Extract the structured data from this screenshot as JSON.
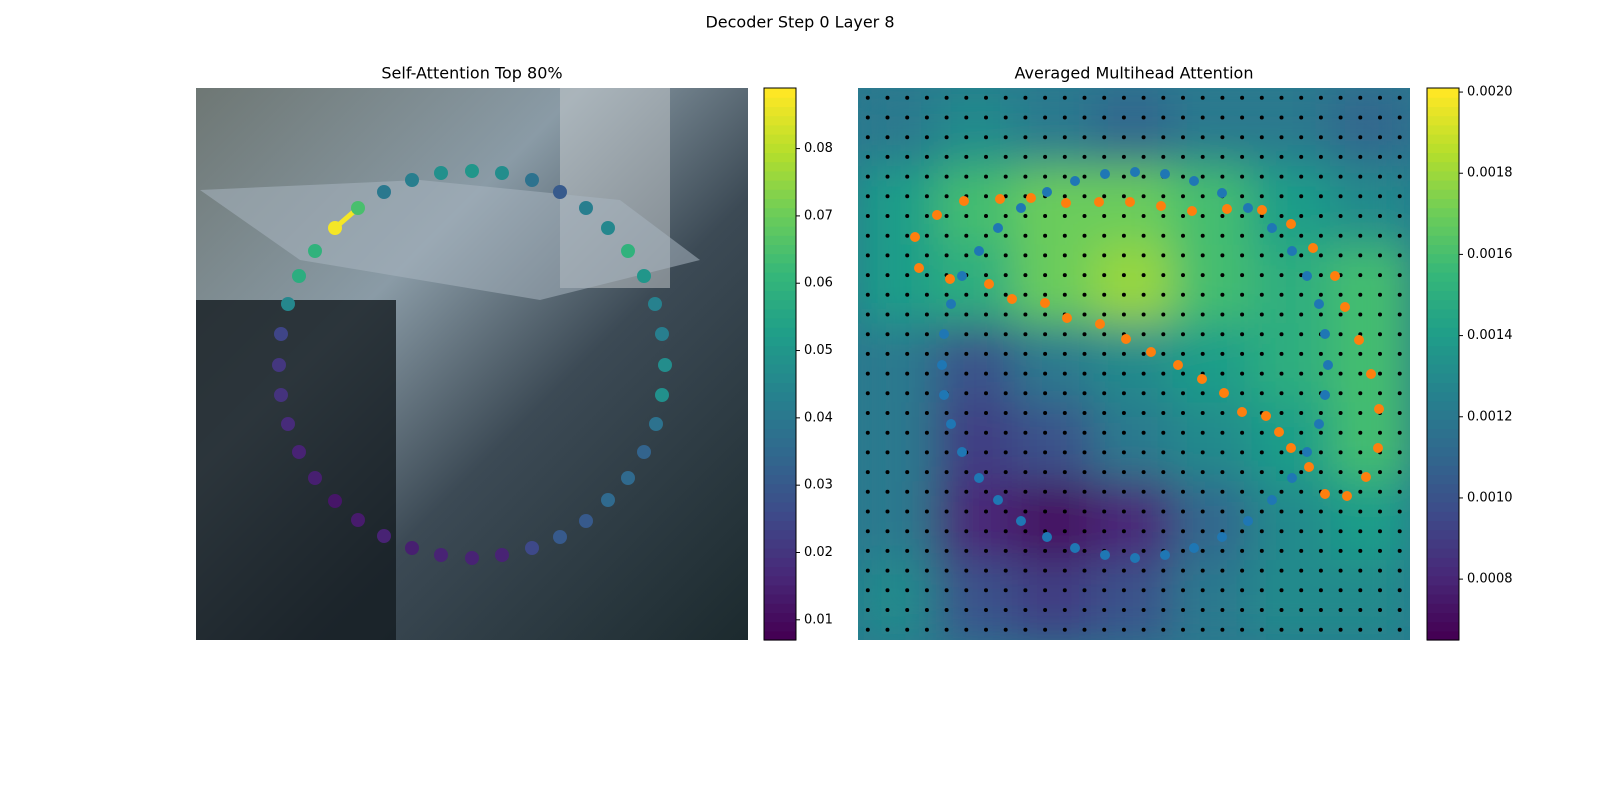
{
  "suptitle": "Decoder Step 0 Layer 8",
  "chart_data": [
    {
      "type": "scatter",
      "title": "Self-Attention Top 80%",
      "colormap": "viridis",
      "xlim": [
        0,
        552
      ],
      "ylim": [
        552,
        0
      ],
      "series": [
        {
          "x": [
            139,
            162,
            188,
            216,
            245,
            276,
            306,
            336,
            364,
            390,
            412,
            432,
            448,
            459,
            466,
            469,
            466,
            460,
            448,
            432,
            412,
            390,
            364,
            336,
            306,
            276,
            245,
            216,
            188,
            162,
            139,
            119,
            103,
            92,
            85,
            83,
            85,
            92,
            103,
            119
          ],
          "y": [
            140,
            120,
            104,
            92,
            85,
            83,
            85,
            92,
            104,
            120,
            140,
            163,
            188,
            216,
            246,
            277,
            307,
            336,
            364,
            390,
            412,
            433,
            449,
            460,
            467,
            470,
            467,
            460,
            448,
            432,
            413,
            390,
            364,
            336,
            307,
            277,
            246,
            216,
            188,
            163
          ],
          "values": [
            0.088,
            0.065,
            0.04,
            0.042,
            0.048,
            0.05,
            0.047,
            0.038,
            0.03,
            0.042,
            0.045,
            0.06,
            0.05,
            0.043,
            0.042,
            0.047,
            0.048,
            0.038,
            0.033,
            0.035,
            0.035,
            0.03,
            0.03,
            0.025,
            0.015,
            0.015,
            0.015,
            0.014,
            0.015,
            0.013,
            0.012,
            0.014,
            0.015,
            0.017,
            0.019,
            0.02,
            0.024,
            0.045,
            0.058,
            0.06
          ]
        }
      ],
      "clim": [
        0.007,
        0.089
      ],
      "cticks": [
        0.01,
        0.02,
        0.03,
        0.04,
        0.05,
        0.06,
        0.07,
        0.08
      ]
    },
    {
      "type": "heatmap",
      "title": "Averaged Multihead Attention",
      "colormap": "viridis",
      "xlim": [
        0,
        552
      ],
      "ylim": [
        552,
        0
      ],
      "heatmap": [
        [
          0.0012,
          0.0013,
          0.0012,
          0.0011,
          0.0012,
          0.0012,
          0.0011
        ],
        [
          0.0014,
          0.0016,
          0.0017,
          0.0017,
          0.0016,
          0.0014,
          0.0013
        ],
        [
          0.0014,
          0.0015,
          0.0017,
          0.0018,
          0.0016,
          0.0015,
          0.0016
        ],
        [
          0.0012,
          0.001,
          0.0012,
          0.0013,
          0.0014,
          0.0015,
          0.0016
        ],
        [
          0.0012,
          0.0009,
          0.001,
          0.0012,
          0.0013,
          0.0014,
          0.0016
        ],
        [
          0.0012,
          0.0008,
          0.0007,
          0.0008,
          0.0011,
          0.0013,
          0.0014
        ],
        [
          0.0013,
          0.001,
          0.0009,
          0.001,
          0.0012,
          0.0013,
          0.0013
        ]
      ],
      "series": [
        {
          "color": "#1f77b4",
          "x": [
            217,
            247,
            277,
            307,
            336,
            364,
            390,
            414,
            434,
            449,
            461,
            467,
            470,
            467,
            461,
            449,
            434,
            414,
            390,
            364,
            336,
            307,
            277,
            247,
            217,
            189,
            163,
            140,
            121,
            104,
            93,
            86,
            84,
            86,
            93,
            104,
            121,
            140,
            163,
            189
          ],
          "y": [
            93,
            86,
            84,
            86,
            93,
            105,
            120,
            140,
            163,
            188,
            216,
            246,
            277,
            307,
            336,
            364,
            390,
            412,
            433,
            449,
            460,
            467,
            470,
            467,
            460,
            449,
            433,
            412,
            390,
            364,
            336,
            307,
            277,
            246,
            216,
            188,
            163,
            140,
            120,
            104
          ]
        },
        {
          "color": "#ff7f0e",
          "x": [
            57,
            79,
            106,
            142,
            173,
            208,
            241,
            272,
            303,
            334,
            369,
            404,
            433,
            455,
            477,
            487,
            501,
            513,
            521,
            520,
            508,
            489,
            467,
            451,
            433,
            421,
            408,
            384,
            366,
            344,
            320,
            293,
            268,
            242,
            209,
            187,
            154,
            131,
            92,
            61
          ],
          "y": [
            149,
            127,
            113,
            111,
            110,
            115,
            114,
            114,
            118,
            123,
            121,
            122,
            136,
            160,
            188,
            219,
            252,
            286,
            321,
            360,
            389,
            408,
            406,
            379,
            360,
            344,
            328,
            324,
            305,
            291,
            277,
            264,
            251,
            236,
            230,
            215,
            211,
            196,
            191,
            180
          ]
        }
      ],
      "clim": [
        0.00065,
        0.00201
      ],
      "cticks": [
        0.0008,
        {
          "value": 0.001,
          "label": "0.0010"
        },
        0.0012,
        0.0014,
        0.0016,
        0.0018,
        {
          "value": 0.002,
          "label": "0.0020"
        }
      ]
    }
  ]
}
